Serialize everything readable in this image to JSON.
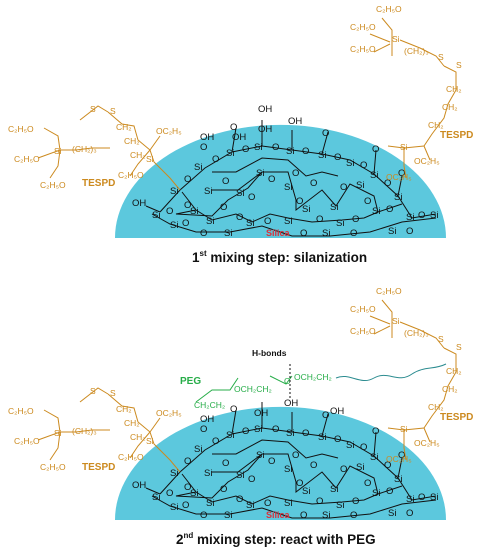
{
  "labels": {
    "silica": "Silica",
    "tespd": "TESPD",
    "peg": "PEG",
    "hbonds": "H-bonds"
  },
  "steps": [
    {
      "ordinal": "1",
      "suffix": "st",
      "text": " mixing step: silanization"
    },
    {
      "ordinal": "2",
      "suffix": "nd",
      "text": " mixing step: react with PEG"
    }
  ],
  "chem": {
    "si": "Si",
    "o": "O",
    "oh": "OH",
    "c2h5o": "C₂H₅O",
    "oc2h5": "OC₂H₅",
    "ch2": "CH₂",
    "ch2_3": "(CH₂)₃",
    "s": "S",
    "peg_chain_1": "CH₂CH₂",
    "peg_chain_2": "OCH₂CH₂",
    "peg_chain_3": "O",
    "peg_chain_4": "OCH₂CH₂"
  },
  "colors": {
    "silica_fill": "#5cc8dd",
    "tespd": "#cc8a1f",
    "peg": "#27ad49",
    "silica_label": "#d8323c",
    "wave": "#2c8c90"
  }
}
